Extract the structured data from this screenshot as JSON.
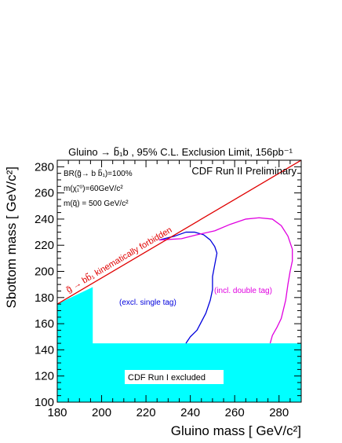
{
  "chart_data": {
    "type": "line",
    "title": "Gluino → b̃₁b , 95% C.L. Exclusion Limit, 156pb⁻¹",
    "xlabel": "Gluino mass [ GeV/c²]",
    "ylabel": "Sbottom mass [ GeV/c²]",
    "xlim": [
      180,
      290
    ],
    "ylim": [
      100,
      285
    ],
    "xticks": [
      180,
      200,
      220,
      240,
      260,
      280
    ],
    "yticks": [
      100,
      120,
      140,
      160,
      180,
      200,
      220,
      240,
      260,
      280
    ],
    "annotations": {
      "preliminary": "CDF Run II Preliminary",
      "br": "BR(g̃→ b b̃₁)=100%",
      "neutralino": "m(χ̃₁⁰)=60GeV/c²",
      "squark": "m(q̃) = 500 GeV/c²",
      "forbidden": "g̃ → bb̃₁ kinematically forbidden",
      "single_tag": "(excl. single tag)",
      "double_tag": "(incl. double tag)",
      "run1": "CDF Run I excluded"
    },
    "colors": {
      "run1_fill": "#00ffff",
      "single_tag": "#0000dd",
      "double_tag": "#e000e0",
      "forbidden_line": "#e00000"
    },
    "regions": [
      {
        "name": "CDF Run I excluded",
        "points": [
          [
            180,
            100
          ],
          [
            290,
            100
          ],
          [
            290,
            145
          ],
          [
            196,
            145
          ],
          [
            196,
            188
          ],
          [
            180,
            175
          ]
        ]
      }
    ],
    "series": [
      {
        "name": "(excl. single tag)",
        "x": [
          238,
          240,
          243,
          247,
          249,
          250,
          250,
          251,
          252,
          251,
          249,
          246,
          242,
          238,
          233,
          226
        ],
        "y": [
          145,
          150,
          155,
          168,
          178,
          186,
          196,
          205,
          214,
          219,
          224,
          228,
          230,
          230,
          227,
          224
        ]
      },
      {
        "name": "(incl. double tag)",
        "x": [
          276,
          277,
          279,
          281,
          282,
          283,
          284,
          285,
          286,
          286,
          284,
          281,
          277,
          271,
          265,
          258,
          251,
          243,
          236,
          226
        ],
        "y": [
          145,
          151,
          157,
          164,
          171,
          178,
          190,
          200,
          208,
          217,
          227,
          235,
          240,
          241,
          240,
          236,
          231,
          228,
          225,
          224
        ]
      },
      {
        "name": "kinematic limit",
        "x": [
          180,
          290
        ],
        "y": [
          175,
          285
        ]
      }
    ]
  }
}
